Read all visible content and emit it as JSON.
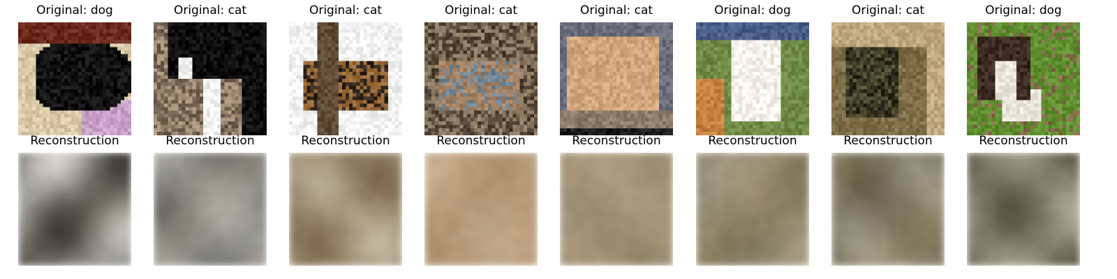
{
  "figure": {
    "rows": [
      {
        "row_kind": "original",
        "panels": [
          {
            "title": "Original: dog",
            "image": "black-dog-lying-in-round-pet-bed",
            "palette": [
              "#6b2a1c",
              "#111111",
              "#d9c9a8",
              "#c9a0c8"
            ]
          },
          {
            "title": "Original: cat",
            "image": "black-and-white-cat-on-ground",
            "palette": [
              "#0d0d0d",
              "#f2f2f2",
              "#a59078",
              "#6e5e4e"
            ]
          },
          {
            "title": "Original: cat",
            "image": "brown-cat-behind-tree-trunk-snow",
            "palette": [
              "#f4f4f4",
              "#5e4a36",
              "#9a6a38",
              "#2e241a"
            ]
          },
          {
            "title": "Original: cat",
            "image": "cougar-crouching-in-straw",
            "palette": [
              "#8d7a64",
              "#a38062",
              "#6f8696",
              "#4e4030"
            ]
          },
          {
            "title": "Original: cat",
            "image": "cougar-standing-against-grey-wall",
            "palette": [
              "#6c6d7c",
              "#d2a67c",
              "#8b7b6a",
              "#1a1a1a"
            ]
          },
          {
            "title": "Original: dog",
            "image": "white-greyhound-with-number-card-on-grass",
            "palette": [
              "#6f8a44",
              "#f3f0ea",
              "#c48040",
              "#4a5d88"
            ]
          },
          {
            "title": "Original: cat",
            "image": "dark-tabby-cat-on-brown-couch",
            "palette": [
              "#4f4a30",
              "#7e6e48",
              "#bfa880",
              "#2b2718"
            ]
          },
          {
            "title": "Original: dog",
            "image": "puppy-lying-in-green-grass",
            "palette": [
              "#5f8f2f",
              "#3a2a22",
              "#e8e4dc",
              "#8a6a50"
            ]
          }
        ]
      },
      {
        "row_kind": "reconstruction",
        "panels": [
          {
            "title": "Reconstruction",
            "image": "blurry-reconstruction-dark-band",
            "palette": [
              "#1a1814",
              "#eeeeea",
              "#bdb9ae",
              "#5a564c"
            ]
          },
          {
            "title": "Reconstruction",
            "image": "blurry-reconstruction-dark-with-white-spot",
            "palette": [
              "#161512",
              "#f2f2ee",
              "#8e8a7e",
              "#c8c4b8"
            ]
          },
          {
            "title": "Reconstruction",
            "image": "blurry-reconstruction-brown",
            "palette": [
              "#5a4628",
              "#b8a68a",
              "#e4dccc",
              "#7d6a48"
            ]
          },
          {
            "title": "Reconstruction",
            "image": "blurry-reconstruction-beige",
            "palette": [
              "#caa986",
              "#8a6a46",
              "#e0ccb2",
              "#a88a68"
            ]
          },
          {
            "title": "Reconstruction",
            "image": "blurry-reconstruction-tan",
            "palette": [
              "#9b8a6c",
              "#d6c8ac",
              "#6a5c42",
              "#b8a88a"
            ]
          },
          {
            "title": "Reconstruction",
            "image": "blurry-reconstruction-olive-light",
            "palette": [
              "#7a6a44",
              "#e6e0d2",
              "#4f4630",
              "#b7ad90"
            ]
          },
          {
            "title": "Reconstruction",
            "image": "blurry-reconstruction-olive-brown",
            "palette": [
              "#5f553a",
              "#a39a80",
              "#d9d2c0",
              "#3e3828"
            ]
          },
          {
            "title": "Reconstruction",
            "image": "blurry-reconstruction-dark-olive",
            "palette": [
              "#3a3628",
              "#8e8670",
              "#d8d4c6",
              "#5d573f"
            ]
          }
        ]
      }
    ]
  }
}
